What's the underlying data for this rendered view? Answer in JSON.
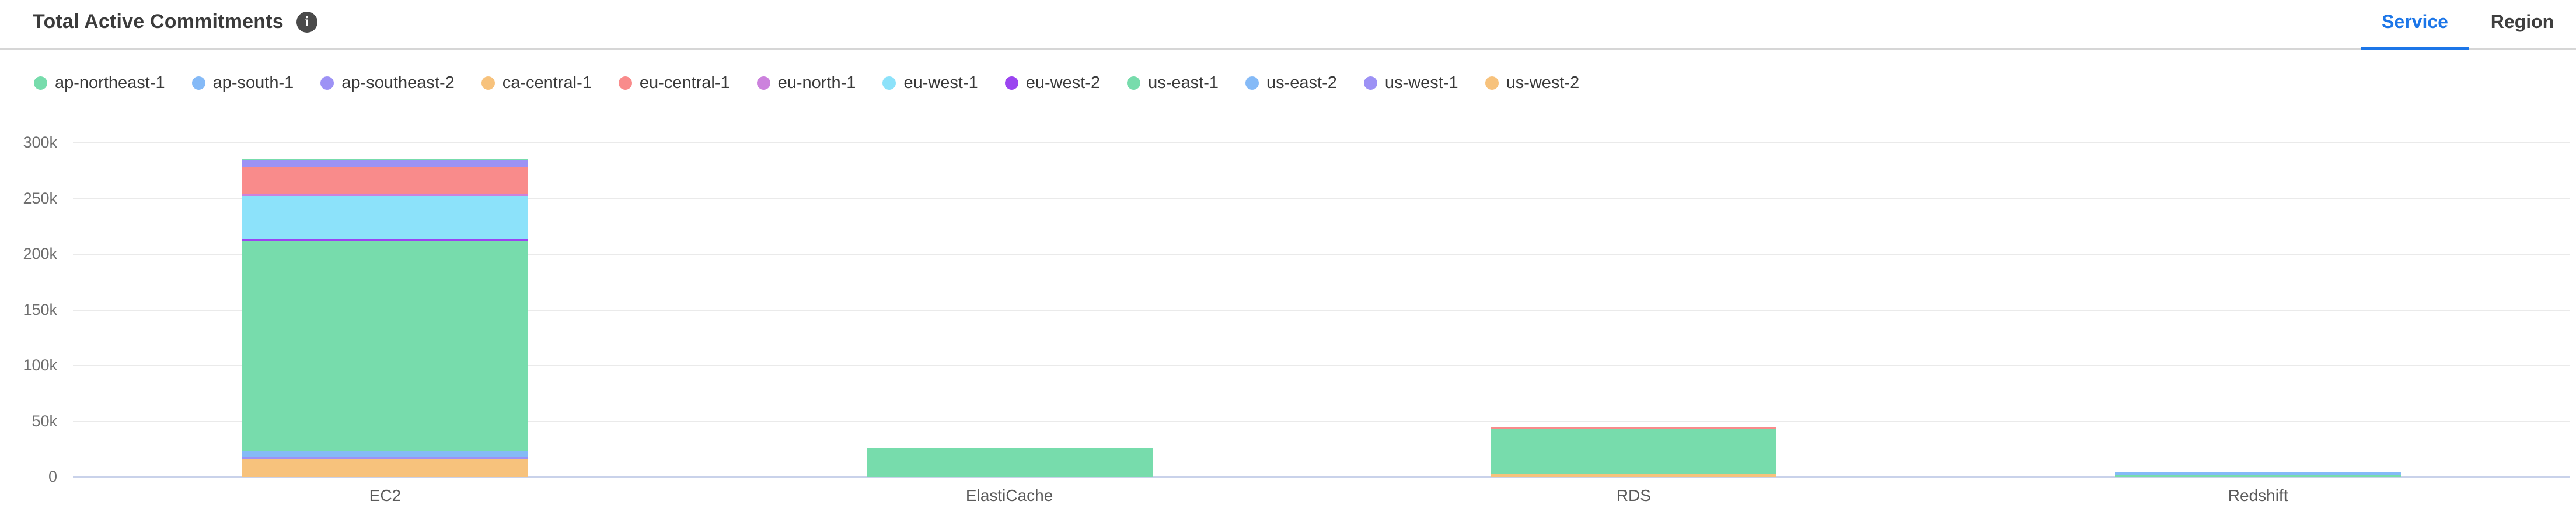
{
  "header": {
    "title": "Total Active Commitments",
    "info_icon": "i",
    "tabs": [
      {
        "label": "Service",
        "active": true
      },
      {
        "label": "Region",
        "active": false
      }
    ]
  },
  "ui_colors": {
    "tab_active": "#1c76e8",
    "gridline": "#eaeaea",
    "zero_line": "#c9d2ea",
    "title_text": "#3b3b3b"
  },
  "chart_data": {
    "type": "bar",
    "stacked": true,
    "title": "Total Active Commitments",
    "xlabel": "",
    "ylabel": "",
    "ylim": [
      0,
      300000
    ],
    "grid": true,
    "legend_position": "top",
    "yticks": [
      {
        "label": "0",
        "value": 0
      },
      {
        "label": "50k",
        "value": 50000
      },
      {
        "label": "100k",
        "value": 100000
      },
      {
        "label": "150k",
        "value": 150000
      },
      {
        "label": "200k",
        "value": 200000
      },
      {
        "label": "250k",
        "value": 250000
      },
      {
        "label": "300k",
        "value": 300000
      }
    ],
    "categories": [
      "EC2",
      "ElastiCache",
      "RDS",
      "Redshift"
    ],
    "series": [
      {
        "name": "ap-northeast-1",
        "color": "#77dcac",
        "values": [
          1500,
          0,
          0,
          0
        ]
      },
      {
        "name": "ap-south-1",
        "color": "#85baf7",
        "values": [
          0,
          0,
          0,
          2000
        ]
      },
      {
        "name": "ap-southeast-2",
        "color": "#9d92f5",
        "values": [
          6000,
          0,
          0,
          0
        ]
      },
      {
        "name": "ca-central-1",
        "color": "#f7c27c",
        "values": [
          0,
          0,
          0,
          0
        ]
      },
      {
        "name": "eu-central-1",
        "color": "#f98b8b",
        "values": [
          24000,
          0,
          2000,
          0
        ]
      },
      {
        "name": "eu-north-1",
        "color": "#cc82dd",
        "values": [
          2000,
          0,
          0,
          0
        ]
      },
      {
        "name": "eu-west-1",
        "color": "#8ce2fa",
        "values": [
          39000,
          0,
          0,
          0
        ]
      },
      {
        "name": "eu-west-2",
        "color": "#9b45f0",
        "values": [
          2000,
          0,
          0,
          0
        ]
      },
      {
        "name": "us-east-1",
        "color": "#77dcac",
        "values": [
          188000,
          26000,
          40500,
          2000
        ]
      },
      {
        "name": "us-east-2",
        "color": "#85baf7",
        "values": [
          5000,
          0,
          0,
          0
        ]
      },
      {
        "name": "us-west-1",
        "color": "#9d92f5",
        "values": [
          2500,
          0,
          0,
          0
        ]
      },
      {
        "name": "us-west-2",
        "color": "#f7c27c",
        "values": [
          16000,
          0,
          2500,
          0
        ]
      }
    ]
  }
}
